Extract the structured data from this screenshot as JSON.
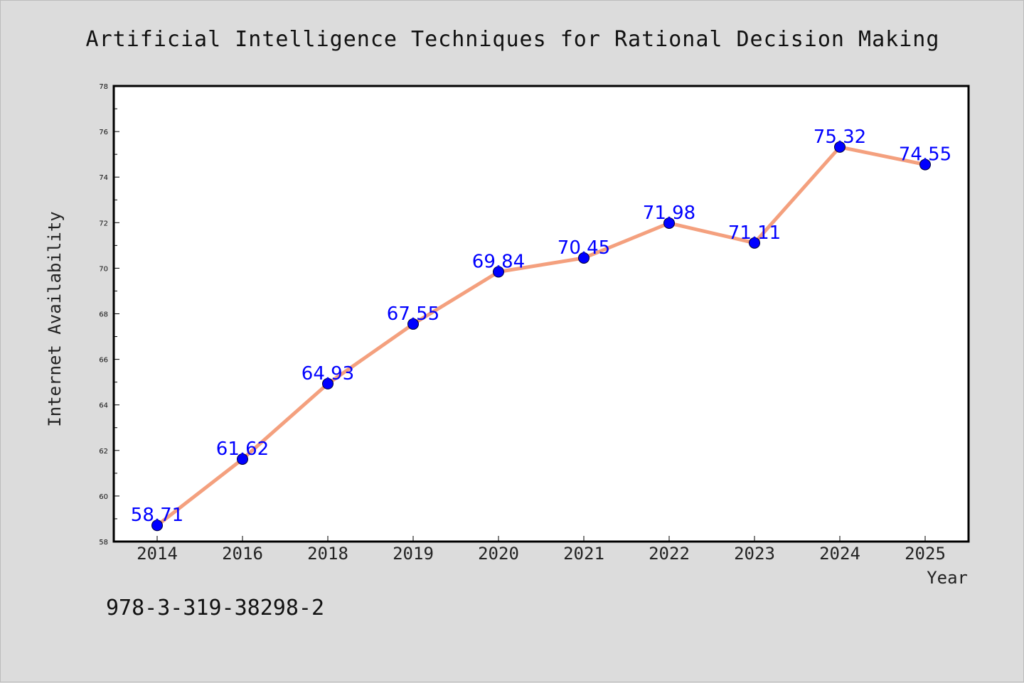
{
  "chart_data": {
    "type": "line",
    "title": "Artificial Intelligence Techniques for Rational Decision Making",
    "xlabel": "Year",
    "ylabel": "Internet Availability",
    "categories": [
      "2014",
      "2016",
      "2018",
      "2019",
      "2020",
      "2021",
      "2022",
      "2023",
      "2024",
      "2025"
    ],
    "series": [
      {
        "values": [
          58.71,
          61.62,
          64.93,
          67.55,
          69.84,
          70.45,
          71.98,
          71.11,
          75.32,
          74.55
        ],
        "labels": [
          "58.71",
          "61.62",
          "64.93",
          "67.55",
          "69.84",
          "70.45",
          "71.98",
          "71.11",
          "75.32",
          "74.55"
        ],
        "line_color": "#f4a07e",
        "marker_color": "#0000ff"
      }
    ],
    "ylim": [
      58,
      78
    ],
    "yticks": [
      "58",
      "60",
      "62",
      "64",
      "66",
      "68",
      "70",
      "72",
      "74",
      "76",
      "78"
    ],
    "grid": false,
    "legend": "none"
  },
  "footer": {
    "text": "978-3-319-38298-2"
  }
}
